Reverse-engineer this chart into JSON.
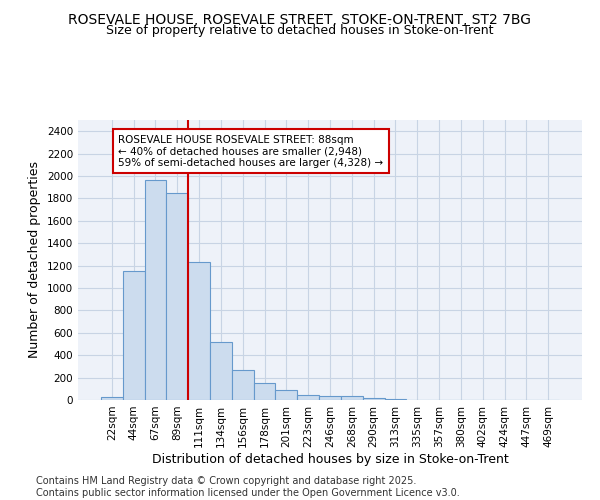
{
  "title_line1": "ROSEVALE HOUSE, ROSEVALE STREET, STOKE-ON-TRENT, ST2 7BG",
  "title_line2": "Size of property relative to detached houses in Stoke-on-Trent",
  "xlabel": "Distribution of detached houses by size in Stoke-on-Trent",
  "ylabel": "Number of detached properties",
  "categories": [
    "22sqm",
    "44sqm",
    "67sqm",
    "89sqm",
    "111sqm",
    "134sqm",
    "156sqm",
    "178sqm",
    "201sqm",
    "223sqm",
    "246sqm",
    "268sqm",
    "290sqm",
    "313sqm",
    "335sqm",
    "357sqm",
    "380sqm",
    "402sqm",
    "424sqm",
    "447sqm",
    "469sqm"
  ],
  "values": [
    30,
    1155,
    1960,
    1845,
    1230,
    520,
    270,
    150,
    85,
    45,
    35,
    35,
    15,
    5,
    2,
    0,
    0,
    0,
    0,
    0,
    0
  ],
  "bar_color": "#ccdcee",
  "bar_edge_color": "#6699cc",
  "grid_color": "#c8d4e4",
  "background_color": "#ffffff",
  "plot_bg_color": "#eef2f9",
  "annotation_line1": "ROSEVALE HOUSE ROSEVALE STREET: 88sqm",
  "annotation_line2": "← 40% of detached houses are smaller (2,948)",
  "annotation_line3": "59% of semi-detached houses are larger (4,328) →",
  "annotation_box_color": "white",
  "annotation_box_edge": "#cc0000",
  "vline_color": "#cc0000",
  "vline_x": 3.5,
  "ylim": [
    0,
    2500
  ],
  "yticks": [
    0,
    200,
    400,
    600,
    800,
    1000,
    1200,
    1400,
    1600,
    1800,
    2000,
    2200,
    2400
  ],
  "footer_line1": "Contains HM Land Registry data © Crown copyright and database right 2025.",
  "footer_line2": "Contains public sector information licensed under the Open Government Licence v3.0.",
  "title_fontsize": 10,
  "subtitle_fontsize": 9,
  "ylabel_fontsize": 9,
  "xlabel_fontsize": 9,
  "tick_fontsize": 7.5,
  "annotation_fontsize": 7.5,
  "footer_fontsize": 7
}
